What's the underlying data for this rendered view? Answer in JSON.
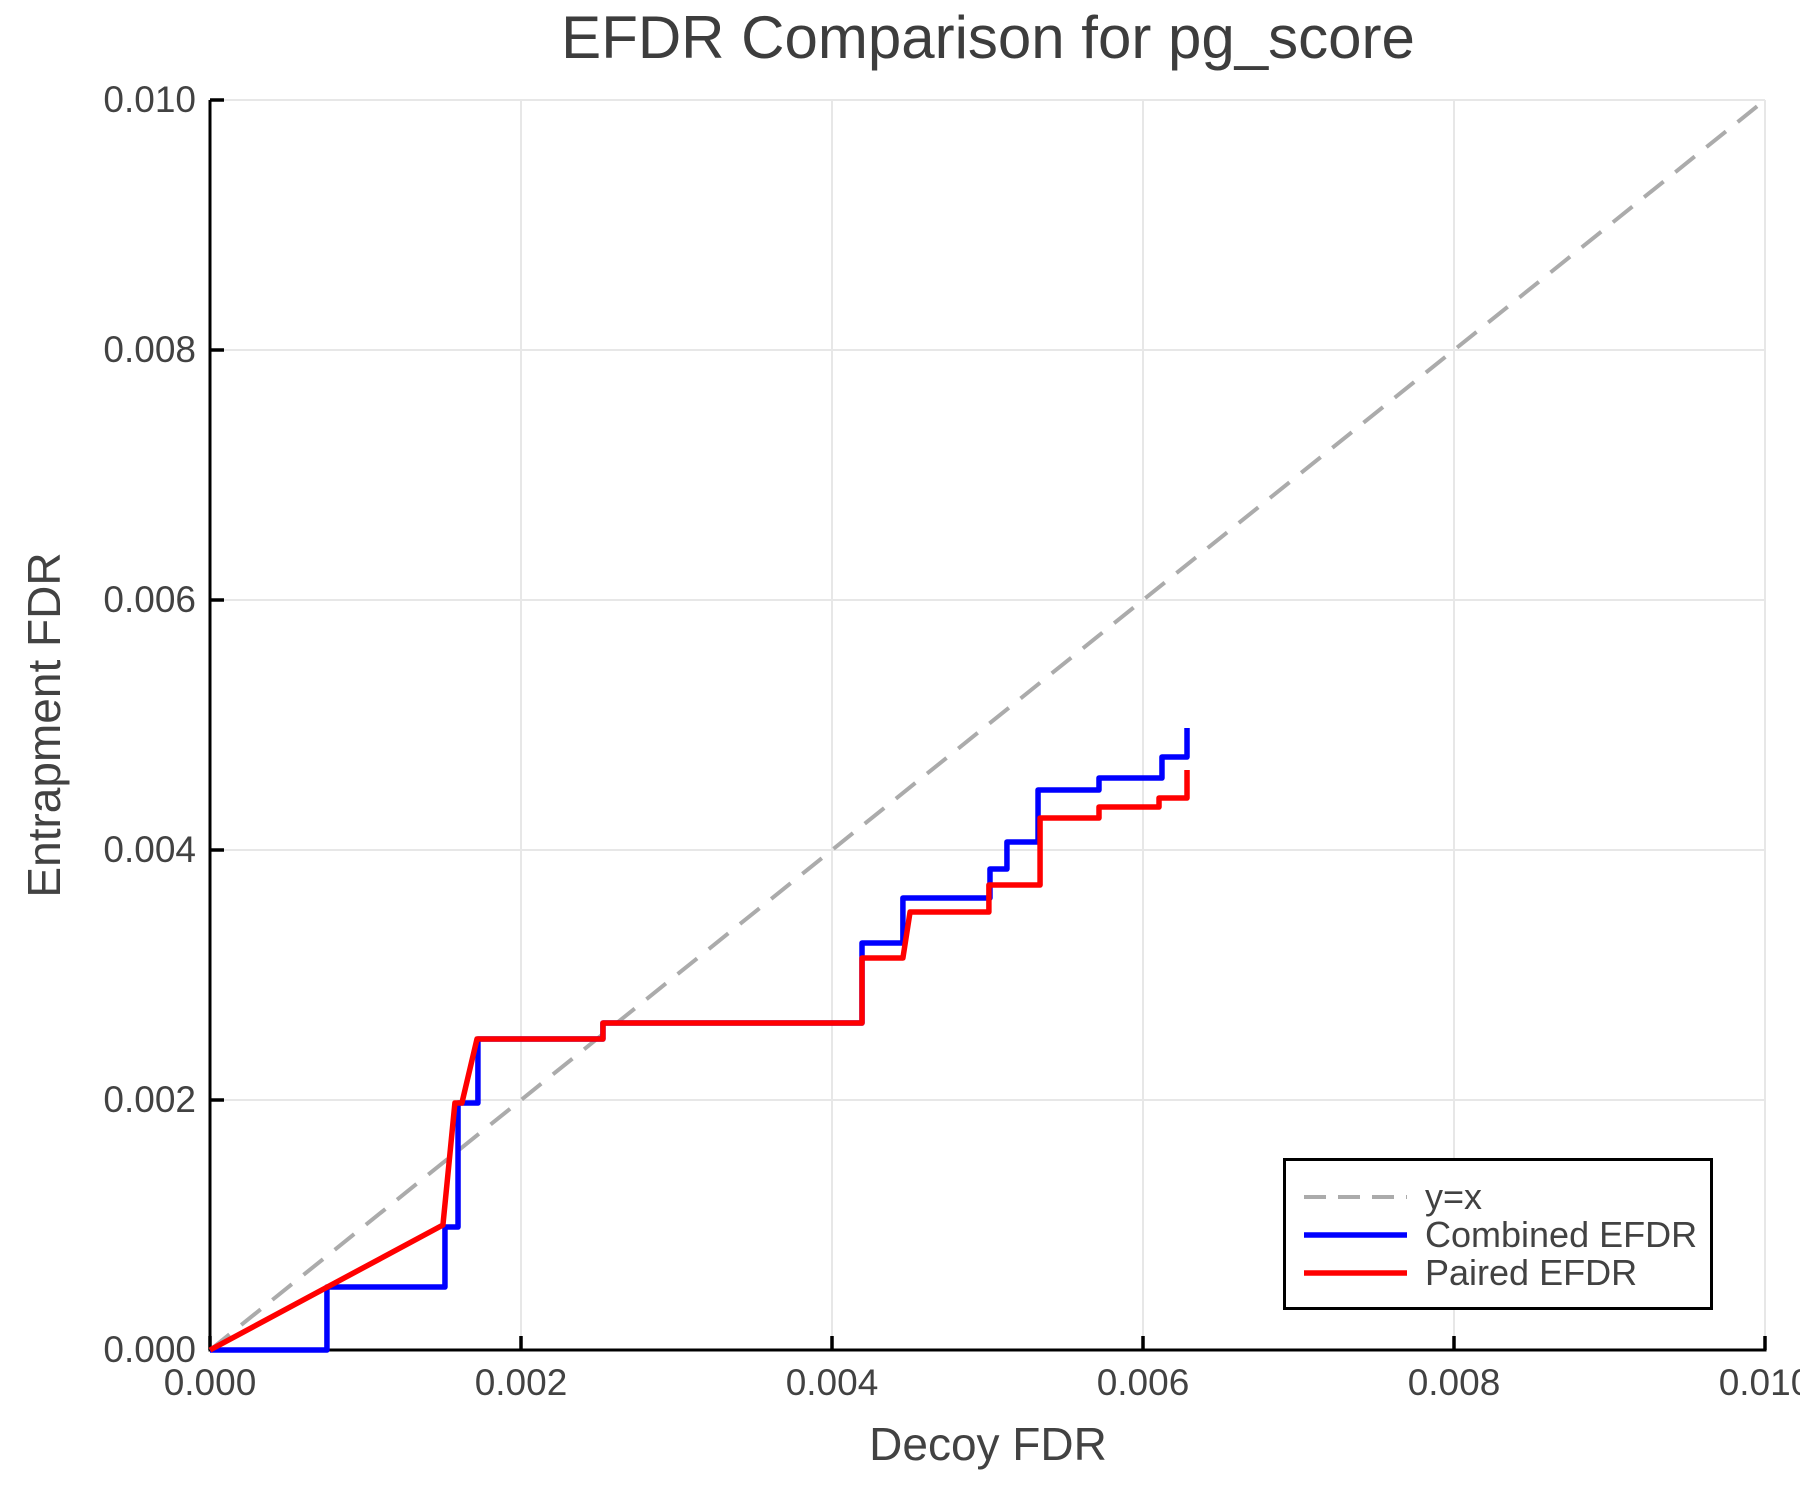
{
  "figure": {
    "title": "EFDR Comparison for pg_score"
  },
  "chart_data": {
    "type": "line",
    "title": "EFDR Comparison for pg_score",
    "xlabel": "Decoy FDR",
    "ylabel": "Entrapment FDR",
    "xlim": [
      0.0,
      0.01
    ],
    "ylim": [
      0.0,
      0.01
    ],
    "grid": true,
    "legend_position": "lower right",
    "xticks": {
      "values": [
        0.0,
        0.002,
        0.004,
        0.006,
        0.008,
        0.01
      ],
      "labels": [
        "0.000",
        "0.002",
        "0.004",
        "0.006",
        "0.008",
        "0.010"
      ]
    },
    "yticks": {
      "values": [
        0.0,
        0.002,
        0.004,
        0.006,
        0.008,
        0.01
      ],
      "labels": [
        "0.000",
        "0.002",
        "0.004",
        "0.006",
        "0.008",
        "0.010"
      ]
    },
    "colors": {
      "grid": "#E7E7E7",
      "spine": "#000000",
      "text": "#424242",
      "identity": "#ABABAB",
      "combined": "#0000FF",
      "paired": "#FF0000"
    },
    "series": [
      {
        "name": "y=x",
        "color": "#ABABAB",
        "style": "dashed",
        "width": 4,
        "points": [
          [
            0.0,
            0.0
          ],
          [
            0.01,
            0.01
          ]
        ]
      },
      {
        "name": "Combined EFDR",
        "color": "#0000FF",
        "style": "solid",
        "width": 5.5,
        "points": [
          [
            0.0,
            0.0
          ],
          [
            0.000752,
            0.0
          ],
          [
            0.000752,
            0.000504
          ],
          [
            0.001511,
            0.000504
          ],
          [
            0.001511,
            0.000984
          ],
          [
            0.001595,
            0.000984
          ],
          [
            0.001595,
            0.001976
          ],
          [
            0.001723,
            0.001976
          ],
          [
            0.001723,
            0.002488
          ],
          [
            0.002527,
            0.002488
          ],
          [
            0.002527,
            0.002616
          ],
          [
            0.004193,
            0.002616
          ],
          [
            0.004193,
            0.003256
          ],
          [
            0.004456,
            0.003256
          ],
          [
            0.004456,
            0.003616
          ],
          [
            0.005016,
            0.003616
          ],
          [
            0.005016,
            0.003848
          ],
          [
            0.005125,
            0.003848
          ],
          [
            0.005125,
            0.004064
          ],
          [
            0.005325,
            0.004064
          ],
          [
            0.005325,
            0.00448
          ],
          [
            0.005717,
            0.00448
          ],
          [
            0.005717,
            0.004576
          ],
          [
            0.006122,
            0.004576
          ],
          [
            0.006122,
            0.004744
          ],
          [
            0.006283,
            0.004744
          ],
          [
            0.006283,
            0.004976
          ]
        ]
      },
      {
        "name": "Paired EFDR",
        "color": "#FF0000",
        "style": "solid",
        "width": 5.5,
        "points": [
          [
            0.0,
            0.0
          ],
          [
            0.001498,
            0.001
          ],
          [
            0.001575,
            0.001976
          ],
          [
            0.00162,
            0.001976
          ],
          [
            0.001717,
            0.002488
          ],
          [
            0.002527,
            0.002488
          ],
          [
            0.002527,
            0.002616
          ],
          [
            0.004193,
            0.002616
          ],
          [
            0.004193,
            0.003136
          ],
          [
            0.004456,
            0.003136
          ],
          [
            0.004502,
            0.003504
          ],
          [
            0.005009,
            0.003504
          ],
          [
            0.005009,
            0.00372
          ],
          [
            0.005338,
            0.00372
          ],
          [
            0.005338,
            0.004256
          ],
          [
            0.005717,
            0.004256
          ],
          [
            0.005717,
            0.004344
          ],
          [
            0.006103,
            0.004344
          ],
          [
            0.006103,
            0.004416
          ],
          [
            0.006283,
            0.004416
          ],
          [
            0.006283,
            0.00464
          ]
        ]
      }
    ]
  },
  "legend": {
    "items": [
      {
        "label": "y=x"
      },
      {
        "label": "Combined EFDR"
      },
      {
        "label": "Paired EFDR"
      }
    ]
  }
}
